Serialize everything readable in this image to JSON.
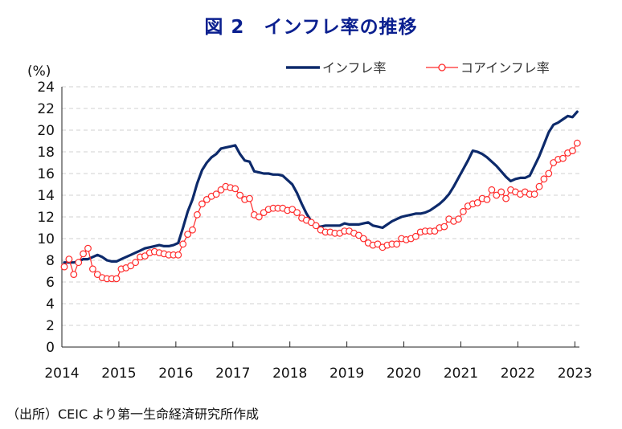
{
  "chart_data": {
    "type": "line",
    "title": "図 2　インフレ率の推移",
    "ylabel": "(%)",
    "xlabel": "",
    "ylim": [
      0,
      24
    ],
    "yticks": [
      "0",
      "2",
      "4",
      "6",
      "8",
      "10",
      "12",
      "14",
      "16",
      "18",
      "20",
      "22",
      "24"
    ],
    "xlim": [
      2014,
      2023.08
    ],
    "xticks": [
      "2014",
      "2015",
      "2016",
      "2017",
      "2018",
      "2019",
      "2020",
      "2021",
      "2022",
      "2023"
    ],
    "grid": "horizontal-dashed",
    "legend_position": "top-right",
    "x_start": "2014-01",
    "x_frequency": "monthly",
    "x_end": "2023-01",
    "series": [
      {
        "name": "インフレ率",
        "color": "#0d2a6b",
        "marker": "none",
        "values": [
          7.8,
          7.8,
          7.8,
          7.9,
          8.1,
          8.1,
          8.3,
          8.5,
          8.3,
          8.0,
          7.9,
          7.9,
          8.1,
          8.3,
          8.5,
          8.7,
          8.9,
          9.1,
          9.2,
          9.3,
          9.4,
          9.3,
          9.3,
          9.4,
          9.6,
          11.0,
          12.5,
          13.6,
          15.1,
          16.3,
          17.0,
          17.5,
          17.8,
          18.3,
          18.4,
          18.5,
          18.6,
          17.8,
          17.2,
          17.1,
          16.2,
          16.1,
          16.0,
          16.0,
          15.9,
          15.9,
          15.8,
          15.4,
          15.0,
          14.2,
          13.2,
          12.3,
          11.6,
          11.1,
          11.1,
          11.2,
          11.2,
          11.2,
          11.2,
          11.4,
          11.3,
          11.3,
          11.3,
          11.4,
          11.5,
          11.2,
          11.1,
          11.0,
          11.3,
          11.6,
          11.8,
          12.0,
          12.1,
          12.2,
          12.3,
          12.3,
          12.4,
          12.6,
          12.9,
          13.2,
          13.6,
          14.1,
          14.8,
          15.6,
          16.4,
          17.2,
          18.1,
          18.0,
          17.8,
          17.5,
          17.1,
          16.7,
          16.2,
          15.7,
          15.3,
          15.5,
          15.6,
          15.6,
          15.8,
          16.7,
          17.6,
          18.7,
          19.8,
          20.5,
          20.7,
          21.0,
          21.3,
          21.2,
          21.7
        ]
      },
      {
        "name": "コアインフレ率",
        "color": "#ff2a2a",
        "marker": "open-circle",
        "values": [
          7.4,
          8.1,
          6.7,
          7.8,
          8.6,
          9.1,
          7.2,
          6.7,
          6.4,
          6.3,
          6.3,
          6.3,
          7.2,
          7.3,
          7.5,
          7.8,
          8.3,
          8.4,
          8.7,
          8.8,
          8.7,
          8.6,
          8.5,
          8.5,
          8.5,
          9.5,
          10.4,
          10.8,
          12.2,
          13.2,
          13.6,
          13.9,
          14.1,
          14.5,
          14.8,
          14.7,
          14.6,
          14.0,
          13.6,
          13.7,
          12.2,
          12.0,
          12.4,
          12.7,
          12.8,
          12.8,
          12.8,
          12.6,
          12.7,
          12.4,
          11.9,
          11.7,
          11.5,
          11.2,
          10.8,
          10.6,
          10.6,
          10.5,
          10.5,
          10.7,
          10.7,
          10.5,
          10.3,
          10.0,
          9.6,
          9.4,
          9.5,
          9.2,
          9.4,
          9.5,
          9.5,
          10.0,
          9.9,
          10.0,
          10.2,
          10.6,
          10.7,
          10.7,
          10.7,
          11.0,
          11.1,
          11.8,
          11.6,
          11.8,
          12.5,
          13.0,
          13.2,
          13.3,
          13.7,
          13.6,
          14.5,
          14.0,
          14.3,
          13.7,
          14.5,
          14.3,
          14.1,
          14.3,
          14.1,
          14.1,
          14.8,
          15.5,
          16.0,
          17.0,
          17.3,
          17.4,
          17.9,
          18.1,
          18.8
        ]
      }
    ]
  },
  "source_note": "（出所）CEIC より第一生命経済研究所作成"
}
